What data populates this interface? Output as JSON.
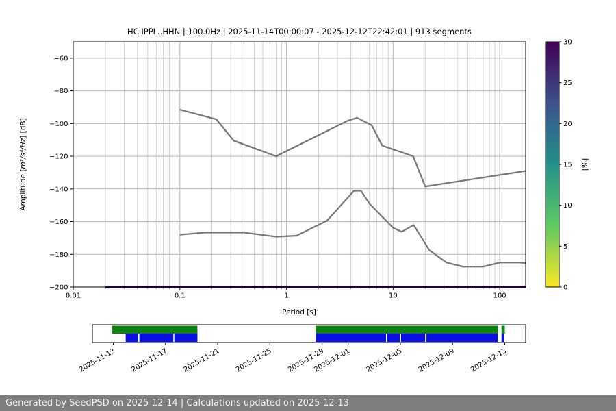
{
  "footer": {
    "text": "Generated by SeedPSD on 2025-12-14 | Calculations updated on 2025-12-13"
  },
  "chart_data": {
    "type": "line",
    "title": "HC.IPPL..HHN | 100.0Hz | 2025-11-14T00:00:07 - 2025-12-12T22:42:01 | 913 segments",
    "xlabel": "Period [s]",
    "ylabel_prefix": "Amplitude [",
    "ylabel_math": "m²/s⁴/Hz",
    "ylabel_suffix": "] [dB]",
    "xscale": "log",
    "xlim": [
      0.01,
      175
    ],
    "ylim": [
      -200,
      -50
    ],
    "grid": true,
    "x_ticks": [
      {
        "v": 0.01,
        "label": "0.01"
      },
      {
        "v": 0.1,
        "label": "0.1"
      },
      {
        "v": 1,
        "label": "1"
      },
      {
        "v": 10,
        "label": "10"
      },
      {
        "v": 100,
        "label": "100"
      }
    ],
    "y_ticks": [
      {
        "v": -60,
        "label": "−60"
      },
      {
        "v": -80,
        "label": "−80"
      },
      {
        "v": -100,
        "label": "−100"
      },
      {
        "v": -120,
        "label": "−120"
      },
      {
        "v": -140,
        "label": "−140"
      },
      {
        "v": -160,
        "label": "−160"
      },
      {
        "v": -180,
        "label": "−180"
      },
      {
        "v": -200,
        "label": "−200"
      }
    ],
    "series": [
      {
        "name": "high-noise-model",
        "color": "#787878",
        "width": 2.3,
        "points": [
          [
            0.1,
            -91.5
          ],
          [
            0.22,
            -97.4
          ],
          [
            0.32,
            -110.5
          ],
          [
            0.8,
            -120.0
          ],
          [
            3.8,
            -98.1
          ],
          [
            4.6,
            -96.5
          ],
          [
            6.3,
            -101.0
          ],
          [
            7.9,
            -113.5
          ],
          [
            15.4,
            -120.0
          ],
          [
            20.0,
            -138.5
          ],
          [
            175,
            -129.0
          ]
        ]
      },
      {
        "name": "low-noise-model",
        "color": "#787878",
        "width": 2.3,
        "points": [
          [
            0.1,
            -168.0
          ],
          [
            0.17,
            -166.7
          ],
          [
            0.4,
            -166.7
          ],
          [
            0.8,
            -169.2
          ],
          [
            1.24,
            -168.6
          ],
          [
            2.4,
            -159.4
          ],
          [
            4.3,
            -141.1
          ],
          [
            5.0,
            -141.1
          ],
          [
            6.0,
            -149.0
          ],
          [
            10.0,
            -163.8
          ],
          [
            12.0,
            -166.2
          ],
          [
            15.6,
            -162.1
          ],
          [
            21.9,
            -177.5
          ],
          [
            31.6,
            -185.0
          ],
          [
            45.0,
            -187.5
          ],
          [
            70.0,
            -187.5
          ],
          [
            101.0,
            -185.0
          ],
          [
            154.0,
            -185.0
          ],
          [
            175,
            -185.4
          ]
        ]
      },
      {
        "name": "psd-probability-band",
        "color": "#37094a",
        "width": 3.5,
        "note": "PSD probability concentrated at clip floor, ~30%",
        "points": [
          [
            0.02,
            -200
          ],
          [
            175,
            -200
          ]
        ]
      }
    ],
    "colorbar": {
      "label": "[%]",
      "min": 0,
      "max": 30,
      "ticks": [
        0,
        5,
        10,
        15,
        20,
        25,
        30
      ],
      "stops": [
        {
          "v": 0,
          "c": "#fde725"
        },
        {
          "v": 7.5,
          "c": "#5ec962"
        },
        {
          "v": 15,
          "c": "#21918c"
        },
        {
          "v": 22.5,
          "c": "#3b528b"
        },
        {
          "v": 30,
          "c": "#440154"
        }
      ]
    },
    "timeline": {
      "epoch": "2025-11-13",
      "range_days": [
        -1.6,
        31.6
      ],
      "ticks": [
        {
          "d": 0,
          "label": "2025-11-13"
        },
        {
          "d": 4,
          "label": "2025-11-17"
        },
        {
          "d": 8,
          "label": "2025-11-21"
        },
        {
          "d": 12,
          "label": "2025-11-25"
        },
        {
          "d": 16,
          "label": "2025-11-29"
        },
        {
          "d": 18,
          "label": "2025-12-01"
        },
        {
          "d": 22,
          "label": "2025-12-05"
        },
        {
          "d": 26,
          "label": "2025-12-09"
        },
        {
          "d": 30,
          "label": "2025-12-13"
        }
      ],
      "green_color": "#128012",
      "blue_color": "#0a10e4",
      "green_segments": [
        [
          -0.1,
          6.45
        ],
        [
          15.5,
          29.5
        ],
        [
          29.75,
          30.0
        ]
      ],
      "blue_segments": [
        [
          0.95,
          1.9
        ],
        [
          2.0,
          4.6
        ],
        [
          4.68,
          6.45
        ],
        [
          15.52,
          20.9
        ],
        [
          21.0,
          21.95
        ],
        [
          22.05,
          23.9
        ],
        [
          24.0,
          29.45
        ],
        [
          29.75,
          29.92
        ]
      ]
    }
  }
}
